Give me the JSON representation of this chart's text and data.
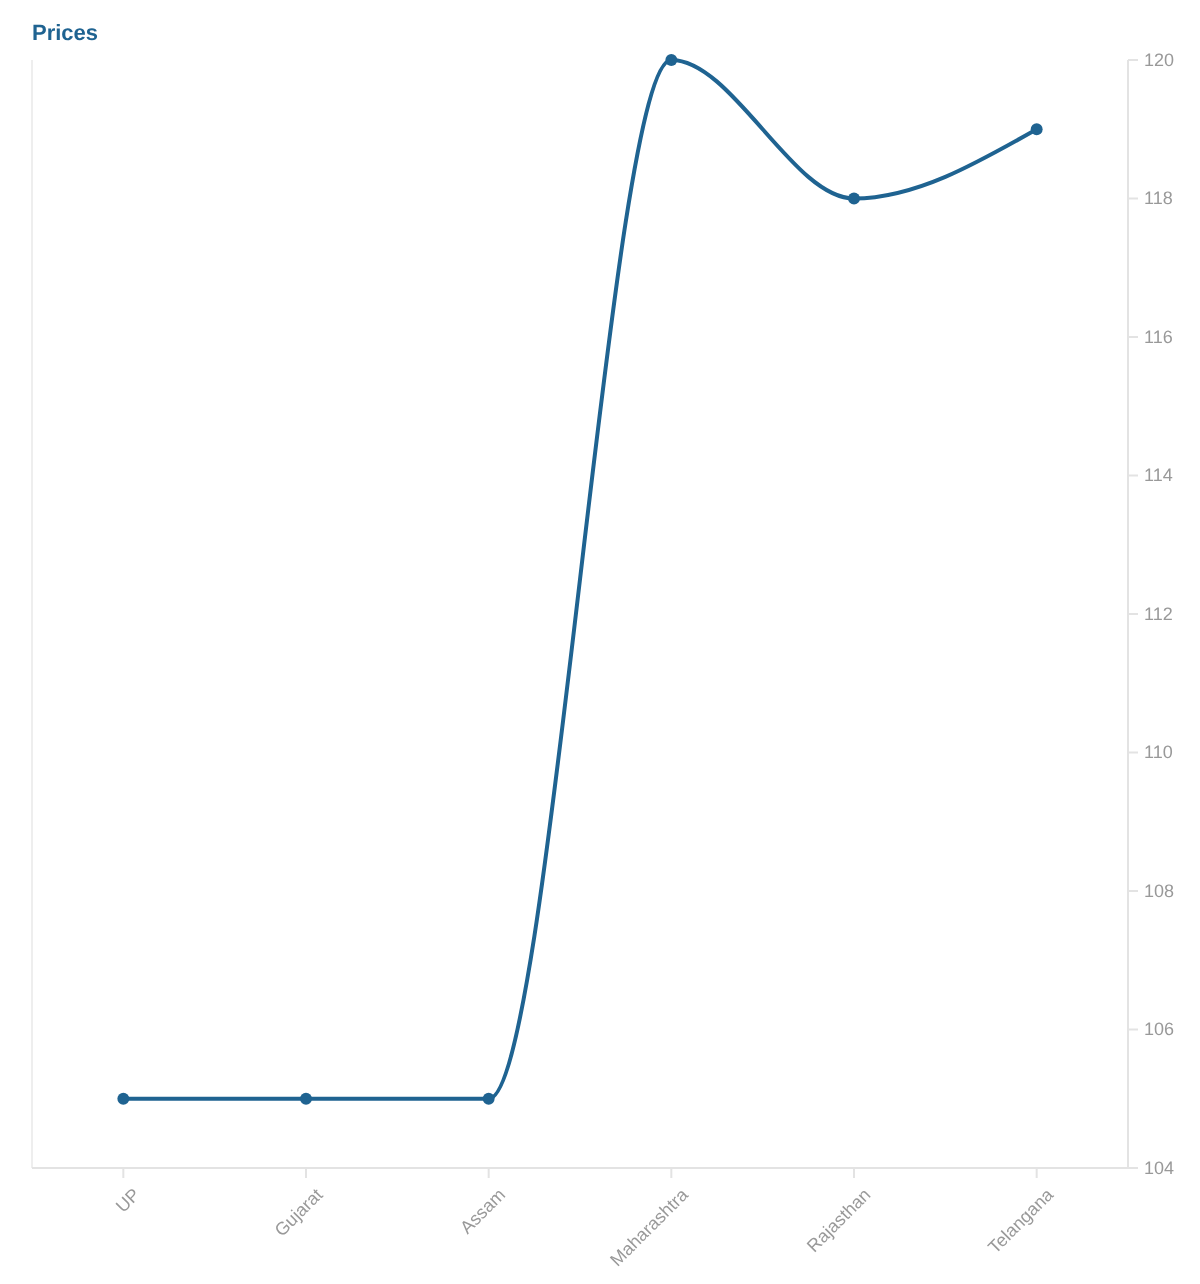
{
  "chart_data": {
    "type": "line",
    "title": "Prices",
    "categories": [
      "UP",
      "Gujarat",
      "Assam",
      "Maharashtra",
      "Rajasthan",
      "Telangana"
    ],
    "series": [
      {
        "color": "#1f6391",
        "values": [
          105,
          105,
          105,
          120,
          118,
          119
        ]
      }
    ],
    "ylim": [
      104,
      120
    ],
    "yticks": [
      104,
      106,
      108,
      110,
      112,
      114,
      116,
      118,
      120
    ],
    "marker": "circle",
    "grid": false
  }
}
